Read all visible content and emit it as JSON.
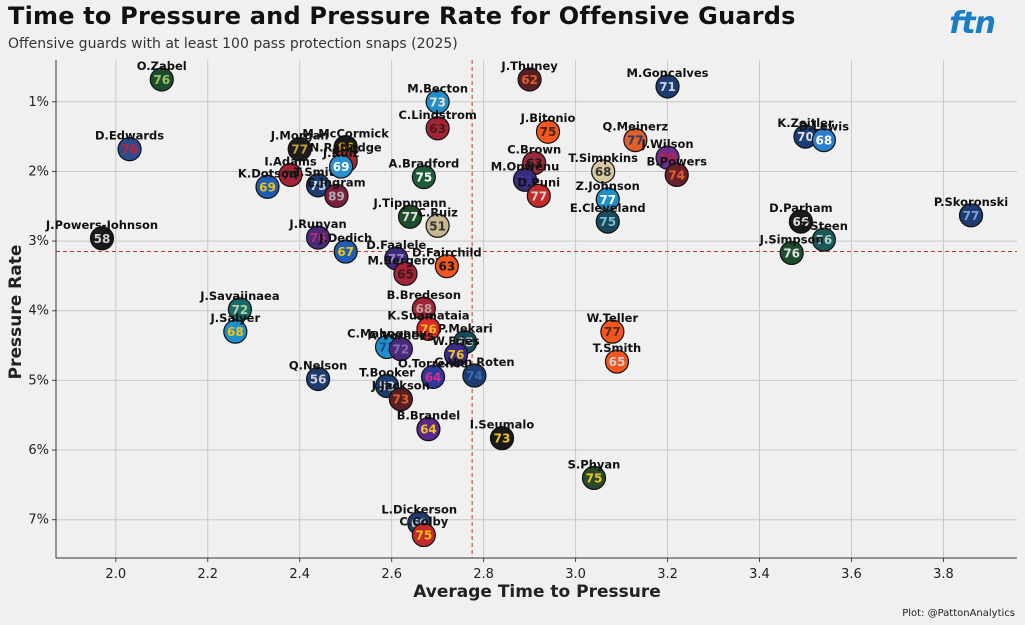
{
  "header": {
    "title": "Time to Pressure and Pressure Rate for Offensive Guards",
    "subtitle": "Offensive guards with at least 100 pass protection snaps (2025)",
    "logo": "ftn",
    "caption": "Plot: @PattonAnalytics"
  },
  "chart_data": {
    "type": "scatter",
    "title": "Time to Pressure and Pressure Rate for Offensive Guards",
    "xlabel": "Average Time to Pressure",
    "ylabel": "Pressure Rate",
    "xlim": [
      1.87,
      3.96
    ],
    "ylim": [
      0.4,
      7.55
    ],
    "y_reversed": true,
    "x_ticks": [
      "2.0",
      "2.2",
      "2.4",
      "2.6",
      "2.8",
      "3.0",
      "3.2",
      "3.4",
      "3.6",
      "3.8"
    ],
    "y_ticks": [
      "1%",
      "2%",
      "3%",
      "4%",
      "5%",
      "6%",
      "7%"
    ],
    "reference_lines": {
      "x_mean": 2.775,
      "y_mean": 3.15
    },
    "points": [
      {
        "name": "O.Zabel",
        "number": "76",
        "x": 2.1,
        "y": 0.68,
        "fill": "#1d4d2b",
        "text": "#9bc26b"
      },
      {
        "name": "M.Becton",
        "number": "73",
        "x": 2.7,
        "y": 1.0,
        "fill": "#1f8fcc",
        "text": "#e8e0c8"
      },
      {
        "name": "J.Thuney",
        "number": "62",
        "x": 2.9,
        "y": 0.68,
        "fill": "#5a1f24",
        "text": "#d8612d"
      },
      {
        "name": "M.Goncalves",
        "number": "71",
        "x": 3.2,
        "y": 0.78,
        "fill": "#1e3c70",
        "text": "#c9d6ea"
      },
      {
        "name": "D.Edwards",
        "number": "76",
        "x": 2.03,
        "y": 1.68,
        "fill": "#2f4a8f",
        "text": "#c8202f"
      },
      {
        "name": "J.Morgan",
        "number": "77",
        "x": 2.4,
        "y": 1.68,
        "fill": "#1d1d1d",
        "text": "#c7a03b"
      },
      {
        "name": "M.McCormick",
        "number": "66",
        "x": 2.5,
        "y": 1.65,
        "fill": "#1a1a1a",
        "text": "#e8a018"
      },
      {
        "name": "C.Lindstrom",
        "number": "63",
        "x": 2.7,
        "y": 1.38,
        "fill": "#a42334",
        "text": "#4a1a1a"
      },
      {
        "name": "J.Bitonio",
        "number": "75",
        "x": 2.94,
        "y": 1.43,
        "fill": "#f3571f",
        "text": "#4a2410"
      },
      {
        "name": "Q.Meinerz",
        "number": "77",
        "x": 3.13,
        "y": 1.55,
        "fill": "#e0602a",
        "text": "#2a3a6a"
      },
      {
        "name": "K.Zeitler",
        "number": "70",
        "x": 3.5,
        "y": 1.5,
        "fill": "#1a3d7a",
        "text": "#e0e0e0"
      },
      {
        "name": "D.Lewis",
        "number": "68",
        "x": 3.54,
        "y": 1.55,
        "fill": "#2a7fd0",
        "text": "#ffffff"
      },
      {
        "name": "J.Wilson",
        "number": "58",
        "x": 3.2,
        "y": 1.8,
        "fill": "#6a2f8f",
        "text": "#c4203f"
      },
      {
        "name": "B.Powers",
        "number": "74",
        "x": 3.22,
        "y": 2.05,
        "fill": "#6a1f2a",
        "text": "#e0602a"
      },
      {
        "name": "N.Ratledge",
        "number": "",
        "x": 2.5,
        "y": 1.85,
        "fill": "#a02a30",
        "text": "#ffffff"
      },
      {
        "name": "I.Adams",
        "number": "74",
        "x": 2.38,
        "y": 2.05,
        "fill": "#a42334",
        "text": "#2a2a2a"
      },
      {
        "name": "T.Smith",
        "number": "75",
        "x": 2.44,
        "y": 2.2,
        "fill": "#1e3c70",
        "text": "#c9d6ea"
      },
      {
        "name": "K.Dotson",
        "number": "69",
        "x": 2.33,
        "y": 2.22,
        "fill": "#1d5db5",
        "text": "#f0c419"
      },
      {
        "name": "J.Ruiz",
        "number": "69",
        "x": 2.49,
        "y": 1.93,
        "fill": "#2a8fcc",
        "text": "#ffffff"
      },
      {
        "name": "A.Bradford",
        "number": "75",
        "x": 2.67,
        "y": 2.08,
        "fill": "#1d5d3b",
        "text": "#ffffff"
      },
      {
        "name": "E.Ingram",
        "number": "89",
        "x": 2.48,
        "y": 2.35,
        "fill": "#7a1f3a",
        "text": "#b0b0b0"
      },
      {
        "name": "C.Brown",
        "number": "63",
        "x": 2.91,
        "y": 1.88,
        "fill": "#9a2a3a",
        "text": "#1a1a1a"
      },
      {
        "name": "M.Onwenu",
        "number": "71",
        "x": 2.89,
        "y": 2.12,
        "fill": "#3a2a7a",
        "text": "#3a3a9a"
      },
      {
        "name": "D.Puni",
        "number": "77",
        "x": 2.92,
        "y": 2.35,
        "fill": "#c42a2a",
        "text": "#d0d0d0"
      },
      {
        "name": "T.Simpkins",
        "number": "68",
        "x": 3.06,
        "y": 2.0,
        "fill": "#d8c8a0",
        "text": "#333333"
      },
      {
        "name": "Z.Johnson",
        "number": "77",
        "x": 3.07,
        "y": 2.4,
        "fill": "#1f8fcc",
        "text": "#ffffff"
      },
      {
        "name": "E.Cleveland",
        "number": "75",
        "x": 3.07,
        "y": 2.72,
        "fill": "#1a4a5a",
        "text": "#7ac0d0"
      },
      {
        "name": "P.Skoronski",
        "number": "77",
        "x": 3.86,
        "y": 2.63,
        "fill": "#1e3c70",
        "text": "#7aa0d8"
      },
      {
        "name": "D.Parham",
        "number": "66",
        "x": 3.49,
        "y": 2.72,
        "fill": "#1a1a1a",
        "text": "#e0e0e0"
      },
      {
        "name": "T.Steen",
        "number": "56",
        "x": 3.54,
        "y": 2.98,
        "fill": "#1a5a5a",
        "text": "#b0d0d0"
      },
      {
        "name": "J.Simpson",
        "number": "76",
        "x": 3.47,
        "y": 3.17,
        "fill": "#1d4d2b",
        "text": "#e0e0e0"
      },
      {
        "name": "J.Tippmann",
        "number": "77",
        "x": 2.64,
        "y": 2.65,
        "fill": "#1d4d2b",
        "text": "#e0e0e0"
      },
      {
        "name": "C.Ruiz",
        "number": "51",
        "x": 2.7,
        "y": 2.78,
        "fill": "#c8b890",
        "text": "#333333"
      },
      {
        "name": "J.Runyan",
        "number": "76",
        "x": 2.44,
        "y": 2.95,
        "fill": "#4a2a7a",
        "text": "#c42a6a"
      },
      {
        "name": "J.Powers-Johnson",
        "number": "58",
        "x": 1.97,
        "y": 2.96,
        "fill": "#1a1a1a",
        "text": "#d0d0d0"
      },
      {
        "name": "J.Dedich",
        "number": "67",
        "x": 2.5,
        "y": 3.15,
        "fill": "#1d5db5",
        "text": "#f0c419"
      },
      {
        "name": "D.Faalele",
        "number": "77",
        "x": 2.61,
        "y": 3.25,
        "fill": "#3a2a7a",
        "text": "#a080d0"
      },
      {
        "name": "M.Bergeron",
        "number": "65",
        "x": 2.63,
        "y": 3.47,
        "fill": "#a42334",
        "text": "#3a1a1a"
      },
      {
        "name": "D.Fairchild",
        "number": "63",
        "x": 2.72,
        "y": 3.36,
        "fill": "#f3571f",
        "text": "#1a1a1a"
      },
      {
        "name": "J.Savaiinaea",
        "number": "72",
        "x": 2.27,
        "y": 3.98,
        "fill": "#1a6a6a",
        "text": "#b0d0a0"
      },
      {
        "name": "J.Salyer",
        "number": "68",
        "x": 2.26,
        "y": 4.3,
        "fill": "#1f8fcc",
        "text": "#f0c419"
      },
      {
        "name": "B.Bredeson",
        "number": "68",
        "x": 2.67,
        "y": 3.97,
        "fill": "#a42334",
        "text": "#c0a0a0"
      },
      {
        "name": "K.Suamataia",
        "number": "76",
        "x": 2.68,
        "y": 4.26,
        "fill": "#e02a2a",
        "text": "#f0c419"
      },
      {
        "name": "W.Teller",
        "number": "77",
        "x": 3.08,
        "y": 4.3,
        "fill": "#f3571f",
        "text": "#5a2a10"
      },
      {
        "name": "C.Mahogany",
        "number": "73",
        "x": 2.59,
        "y": 4.52,
        "fill": "#1f8fcc",
        "text": "#1a4a8a"
      },
      {
        "name": "A.Vorhees",
        "number": "72",
        "x": 2.62,
        "y": 4.55,
        "fill": "#4a2a7a",
        "text": "#8a6ab0"
      },
      {
        "name": "P.Mekari",
        "number": "65",
        "x": 2.76,
        "y": 4.45,
        "fill": "#1a4a5a",
        "text": "#d0d0d0"
      },
      {
        "name": "W.Fries",
        "number": "76",
        "x": 2.74,
        "y": 4.63,
        "fill": "#3a2a8a",
        "text": "#f0c419"
      },
      {
        "name": "T.Smith",
        "number": "65",
        "x": 3.09,
        "y": 4.73,
        "fill": "#f3571f",
        "text": "#d0d0d0"
      },
      {
        "name": "Q.Nelson",
        "number": "56",
        "x": 2.44,
        "y": 4.98,
        "fill": "#1e3c70",
        "text": "#d0d0d0"
      },
      {
        "name": "G.Van Roten",
        "number": "74",
        "x": 2.78,
        "y": 4.93,
        "fill": "#1e3c70",
        "text": "#3a6ab0"
      },
      {
        "name": "T.Booker",
        "number": "52",
        "x": 2.59,
        "y": 5.08,
        "fill": "#1e3c70",
        "text": "#d0d0d0"
      },
      {
        "name": "O.Torrence",
        "number": "64",
        "x": 2.69,
        "y": 4.95,
        "fill": "#2a3a9a",
        "text": "#e02a8a"
      },
      {
        "name": "J.Jackson",
        "number": "73",
        "x": 2.62,
        "y": 5.27,
        "fill": "#5a1f24",
        "text": "#e0602a"
      },
      {
        "name": "B.Brandel",
        "number": "64",
        "x": 2.68,
        "y": 5.7,
        "fill": "#5a2a8a",
        "text": "#f0c419"
      },
      {
        "name": "I.Seumalo",
        "number": "73",
        "x": 2.84,
        "y": 5.83,
        "fill": "#1a1a1a",
        "text": "#f0c419"
      },
      {
        "name": "S.Phyan",
        "number": "75",
        "x": 3.04,
        "y": 6.4,
        "fill": "#2a4a2a",
        "text": "#f0c419"
      },
      {
        "name": "L.Dickerson",
        "number": "69",
        "x": 2.66,
        "y": 7.05,
        "fill": "#1e3c70",
        "text": "#c0c0c0"
      },
      {
        "name": "C.Colby",
        "number": "75",
        "x": 2.67,
        "y": 7.22,
        "fill": "#c42a2a",
        "text": "#f0c419"
      }
    ]
  }
}
